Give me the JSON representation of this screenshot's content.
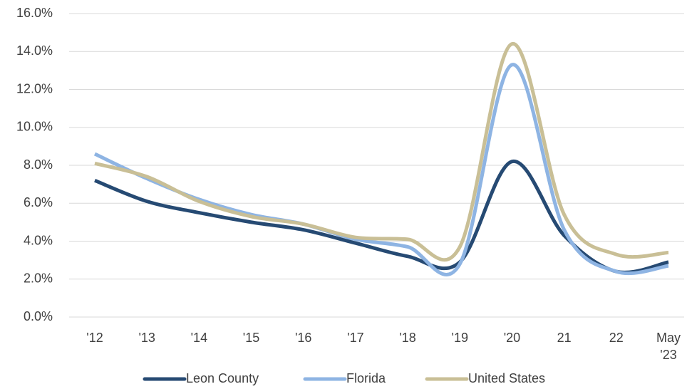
{
  "chart_data": {
    "type": "line",
    "categories": [
      "'12",
      "'13",
      "'14",
      "'15",
      "'16",
      "'17",
      "'18",
      "'19",
      "'20",
      "21",
      "22",
      "May '23"
    ],
    "series": [
      {
        "name": "Leon County",
        "color": "#264a73",
        "values": [
          7.2,
          6.1,
          5.5,
          5.0,
          4.6,
          3.9,
          3.2,
          2.9,
          8.2,
          4.3,
          2.4,
          2.9
        ]
      },
      {
        "name": "Florida",
        "color": "#8eb4e3",
        "values": [
          8.6,
          7.3,
          6.2,
          5.4,
          4.9,
          4.1,
          3.7,
          2.8,
          13.3,
          4.6,
          2.4,
          2.7
        ]
      },
      {
        "name": "United States",
        "color": "#c9bf96",
        "values": [
          8.1,
          7.4,
          6.1,
          5.3,
          4.9,
          4.2,
          4.1,
          3.7,
          14.4,
          5.4,
          3.3,
          3.4
        ]
      }
    ],
    "ylim": [
      0,
      16
    ],
    "yticks": [
      {
        "value": 0,
        "label": "0.0%"
      },
      {
        "value": 2,
        "label": "2.0%"
      },
      {
        "value": 4,
        "label": "4.0%"
      },
      {
        "value": 6,
        "label": "6.0%"
      },
      {
        "value": 8,
        "label": "8.0%"
      },
      {
        "value": 10,
        "label": "10.0%"
      },
      {
        "value": 12,
        "label": "12.0%"
      },
      {
        "value": 14,
        "label": "14.0%"
      },
      {
        "value": 16,
        "label": "16.0%"
      }
    ],
    "grid": true,
    "smooth": true,
    "legend": "bottom"
  }
}
